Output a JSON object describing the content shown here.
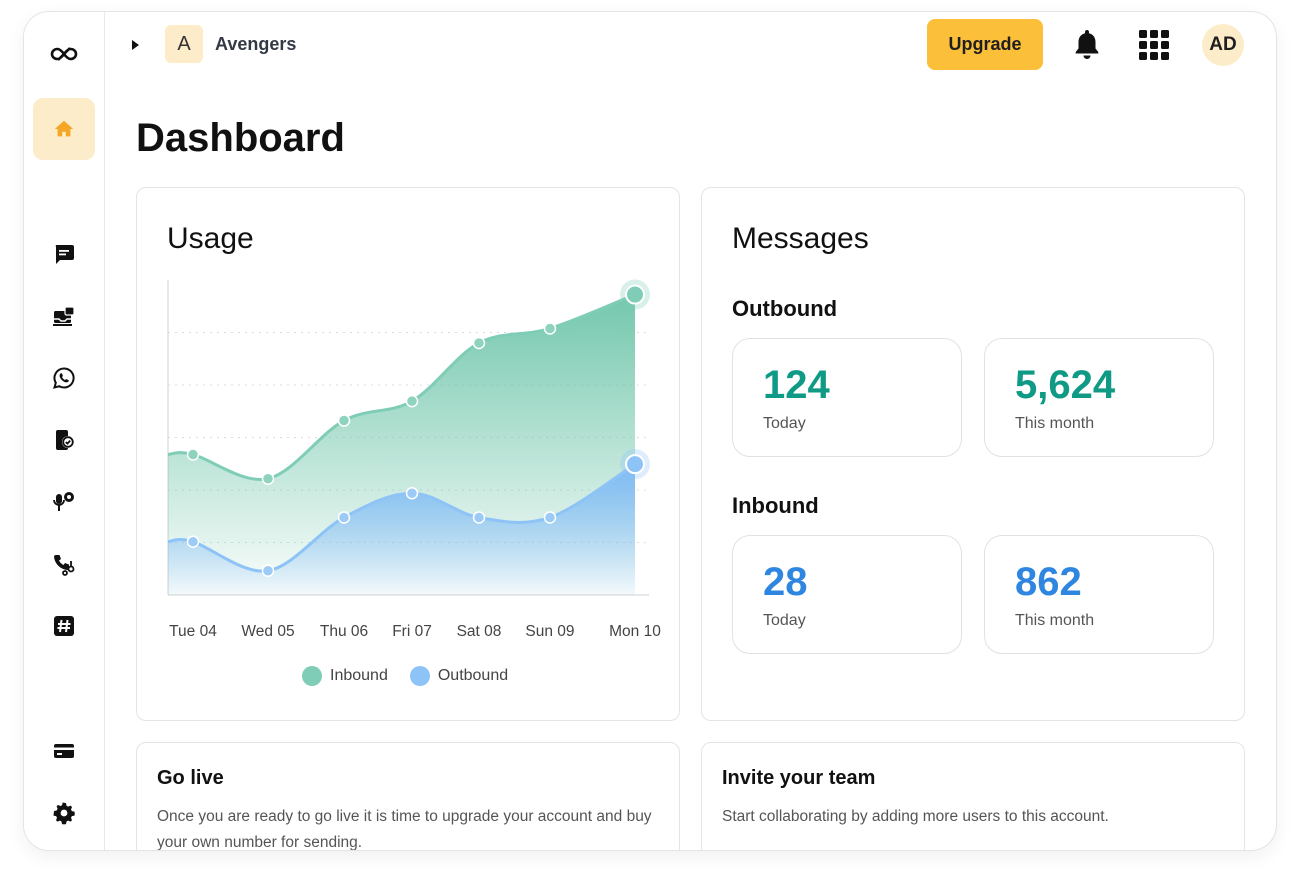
{
  "colors": {
    "accent": "#fbbf3a",
    "accent_light": "#fdecc9",
    "inbound": "#7fcdb6",
    "outbound": "#8ec3f7",
    "outbound_value": "#0f9a85",
    "inbound_value": "#2f86e0"
  },
  "sidebar": {
    "items": [
      {
        "name": "logo-icon"
      },
      {
        "name": "home-icon"
      },
      {
        "name": "chat-icon"
      },
      {
        "name": "inbox-icon"
      },
      {
        "name": "whatsapp-icon"
      },
      {
        "name": "phone-verify-icon"
      },
      {
        "name": "voice-icon"
      },
      {
        "name": "call-routing-icon"
      },
      {
        "name": "hashtag-icon"
      },
      {
        "name": "billing-card-icon"
      },
      {
        "name": "settings-gear-icon"
      }
    ]
  },
  "header": {
    "workspace_initial": "A",
    "workspace_name": "Avengers",
    "upgrade_label": "Upgrade",
    "avatar_initials": "AD"
  },
  "page": {
    "title": "Dashboard"
  },
  "usage": {
    "title": "Usage"
  },
  "chart_data": {
    "type": "area",
    "title": "Usage",
    "categories": [
      "Tue 04",
      "Wed 05",
      "Thu 06",
      "Fri 07",
      "Sat 08",
      "Sun 09",
      "Mon 10"
    ],
    "series": [
      {
        "name": "Inbound",
        "values": [
          29,
          24,
          36,
          40,
          52,
          55,
          62
        ]
      },
      {
        "name": "Outbound",
        "values": [
          11,
          5,
          16,
          21,
          16,
          16,
          27
        ]
      }
    ],
    "ylim": [
      0,
      65
    ],
    "grid": true,
    "legend": "bottom"
  },
  "messages": {
    "title": "Messages",
    "outbound_heading": "Outbound",
    "inbound_heading": "Inbound",
    "outbound_today": "124",
    "outbound_month": "5,624",
    "inbound_today": "28",
    "inbound_month": "862",
    "today_label": "Today",
    "month_label": "This month"
  },
  "go_live": {
    "title": "Go live",
    "text": "Once you are ready to go live it is time to upgrade your account and buy your own number for sending."
  },
  "invite": {
    "title": "Invite your team",
    "text": "Start collaborating by adding more users to this account."
  }
}
